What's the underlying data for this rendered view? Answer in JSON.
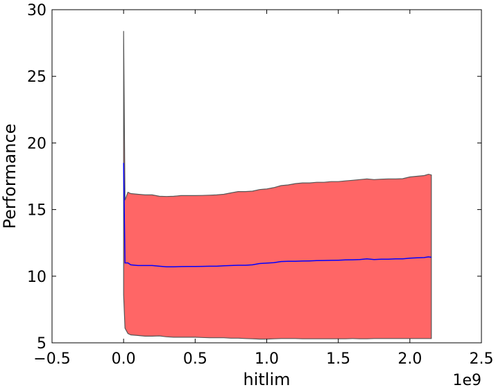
{
  "chart_data": {
    "type": "area",
    "title": "",
    "xlabel": "hitlim",
    "ylabel": "Performance",
    "x_offset_label": "1e9",
    "xlim": [
      -0.5,
      2.5
    ],
    "ylim": [
      5,
      30
    ],
    "x_ticks": [
      -0.5,
      0.0,
      0.5,
      1.0,
      1.5,
      2.0,
      2.5
    ],
    "x_tick_labels": [
      "−0.5",
      "0.0",
      "0.5",
      "1.0",
      "1.5",
      "2.0",
      "2.5"
    ],
    "y_ticks": [
      5,
      10,
      15,
      20,
      25,
      30
    ],
    "y_tick_labels": [
      "5",
      "10",
      "15",
      "20",
      "25",
      "30"
    ],
    "grid": false,
    "x_unit_scale": 1000000000,
    "x": [
      0,
      0.01,
      0.03,
      0.05,
      0.1,
      0.15,
      0.2,
      0.25,
      0.3,
      0.35,
      0.4,
      0.45,
      0.5,
      0.55,
      0.6,
      0.65,
      0.7,
      0.75,
      0.8,
      0.85,
      0.9,
      0.95,
      1.0,
      1.05,
      1.1,
      1.15,
      1.2,
      1.25,
      1.3,
      1.35,
      1.4,
      1.45,
      1.5,
      1.55,
      1.6,
      1.65,
      1.7,
      1.75,
      1.8,
      1.85,
      1.9,
      1.95,
      2.0,
      2.05,
      2.1,
      2.13,
      2.15
    ],
    "series": [
      {
        "role": "mean",
        "color": "#0000ff",
        "values": [
          18.5,
          11.0,
          11.0,
          10.85,
          10.8,
          10.8,
          10.8,
          10.75,
          10.7,
          10.7,
          10.72,
          10.73,
          10.73,
          10.74,
          10.75,
          10.75,
          10.78,
          10.8,
          10.82,
          10.82,
          10.85,
          10.95,
          10.98,
          11.02,
          11.1,
          11.12,
          11.12,
          11.14,
          11.15,
          11.17,
          11.18,
          11.19,
          11.2,
          11.22,
          11.23,
          11.25,
          11.3,
          11.25,
          11.28,
          11.28,
          11.3,
          11.3,
          11.35,
          11.38,
          11.4,
          11.45,
          11.42
        ]
      },
      {
        "role": "upper_bound",
        "values": [
          28.4,
          15.7,
          16.3,
          16.2,
          16.15,
          16.1,
          16.1,
          16.0,
          15.98,
          16.0,
          16.05,
          16.05,
          16.05,
          16.06,
          16.08,
          16.1,
          16.15,
          16.25,
          16.35,
          16.35,
          16.38,
          16.5,
          16.55,
          16.65,
          16.8,
          16.85,
          16.95,
          17.0,
          17.0,
          17.05,
          17.05,
          17.1,
          17.1,
          17.15,
          17.2,
          17.25,
          17.3,
          17.25,
          17.28,
          17.3,
          17.3,
          17.32,
          17.45,
          17.5,
          17.55,
          17.65,
          17.6
        ]
      },
      {
        "role": "lower_bound",
        "values": [
          8.6,
          6.1,
          5.7,
          5.6,
          5.55,
          5.5,
          5.5,
          5.52,
          5.45,
          5.42,
          5.42,
          5.42,
          5.42,
          5.4,
          5.38,
          5.38,
          5.38,
          5.35,
          5.35,
          5.32,
          5.3,
          5.28,
          5.28,
          5.3,
          5.32,
          5.32,
          5.32,
          5.3,
          5.3,
          5.3,
          5.3,
          5.3,
          5.3,
          5.3,
          5.32,
          5.3,
          5.3,
          5.32,
          5.32,
          5.32,
          5.32,
          5.32,
          5.32,
          5.32,
          5.32,
          5.32,
          5.32
        ]
      }
    ],
    "band_color": "#ff6666",
    "band_edge_color": "#555555"
  }
}
